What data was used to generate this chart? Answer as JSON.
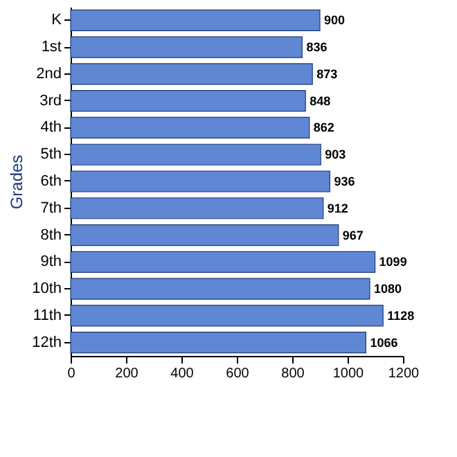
{
  "chart_data": {
    "type": "bar",
    "orientation": "horizontal",
    "ylabel": "Grades",
    "categories": [
      "K",
      "1st",
      "2nd",
      "3rd",
      "4th",
      "5th",
      "6th",
      "7th",
      "8th",
      "9th",
      "10th",
      "11th",
      "12th"
    ],
    "values": [
      900,
      836,
      873,
      848,
      862,
      903,
      936,
      912,
      967,
      1099,
      1080,
      1128,
      1066
    ],
    "color": "#5f87d4",
    "xlim": [
      0,
      1200
    ],
    "xticks": [
      0,
      200,
      400,
      600,
      800,
      1000,
      1200
    ],
    "grid": false,
    "data_labels": true
  }
}
